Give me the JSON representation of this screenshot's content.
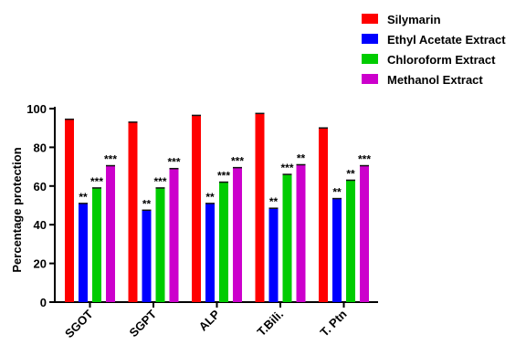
{
  "chart_data": {
    "type": "bar",
    "ylabel": "Percentage protection",
    "ylim": [
      0,
      100
    ],
    "yticks": [
      0,
      20,
      40,
      60,
      80,
      100
    ],
    "categories": [
      "SGOT",
      "SGPT",
      "ALP",
      "T.Bili.",
      "T. Ptn"
    ],
    "legend_position": "top-right",
    "series": [
      {
        "name": "Silymarin",
        "color": "#ff0000",
        "values": [
          94.5,
          93,
          96.5,
          97.5,
          90
        ],
        "labels": [
          "",
          "",
          "",
          "",
          ""
        ]
      },
      {
        "name": "Ethyl Acetate Extract",
        "color": "#0000ff",
        "values": [
          51,
          47.5,
          51,
          48.5,
          53.5
        ],
        "labels": [
          "**",
          "**",
          "**",
          "**",
          "**"
        ]
      },
      {
        "name": "Chloroform Extract",
        "color": "#00cc00",
        "values": [
          59,
          59,
          62,
          66,
          63
        ],
        "labels": [
          "***",
          "***",
          "***",
          "***",
          "**"
        ]
      },
      {
        "name": "Methanol Extract",
        "color": "#cc00cc",
        "values": [
          70.5,
          69,
          69.5,
          71,
          70.5
        ],
        "labels": [
          "***",
          "***",
          "***",
          "**",
          "***"
        ]
      }
    ]
  }
}
